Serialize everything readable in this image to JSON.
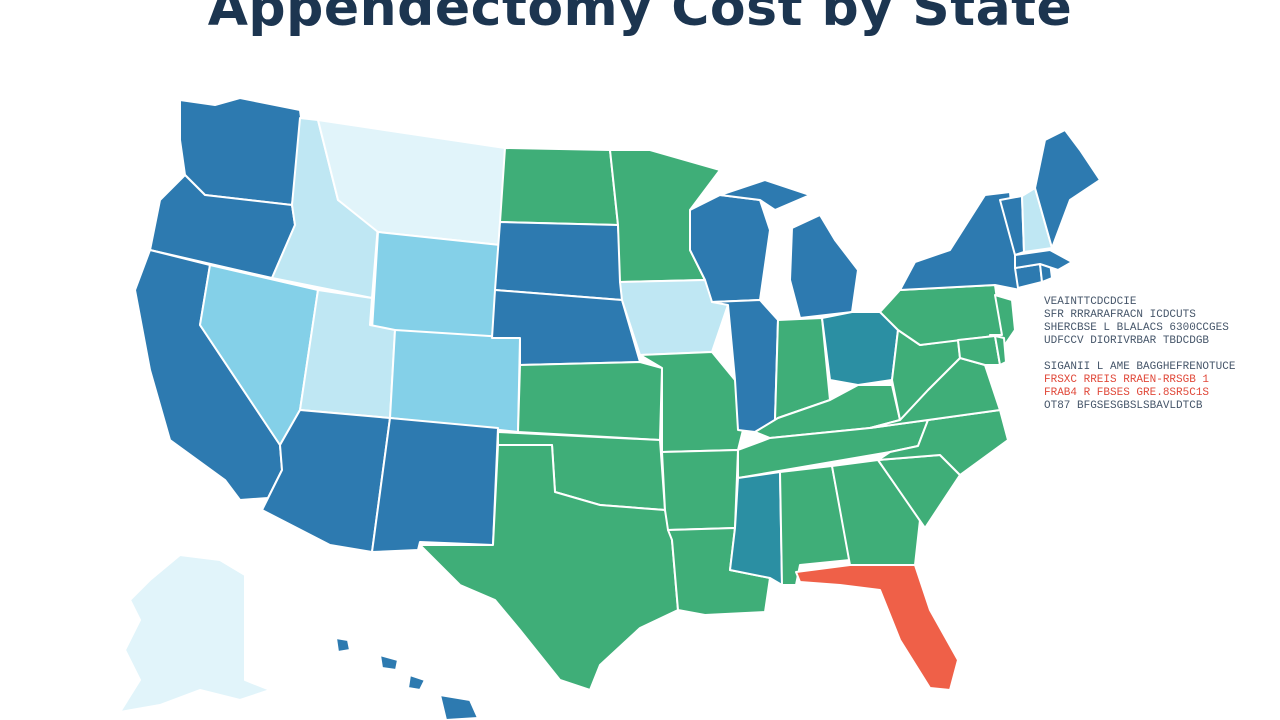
{
  "title": "Appendectomy Cost by State",
  "colors": {
    "dark_blue": "#2d7ab0",
    "teal": "#2b8fa3",
    "green": "#3fae78",
    "light_blue": "#84d0e8",
    "pale_blue": "#bfe7f3",
    "very_pale": "#e1f4fa",
    "red_orange": "#ef6048",
    "title_text": "#1c3550",
    "annotation_text": "#46566a",
    "annotation_red": "#e0493a"
  },
  "legend": "none",
  "annotations": {
    "lines": [
      {
        "text": "VEAINTTCDCDCIE",
        "color": "#46566a"
      },
      {
        "text": "SFR RRRARAFRACN ICDCUTS",
        "color": "#46566a"
      },
      {
        "text": "SHERCBSE L BLALACS 6300CCGES",
        "color": "#46566a"
      },
      {
        "text": "UDFCCV DIORIVRBAR TBDCDGB",
        "color": "#46566a"
      },
      {
        "text": "",
        "color": "#46566a"
      },
      {
        "text": "SIGANII L AME BAGGHEFRENOTUCE",
        "color": "#46566a"
      },
      {
        "text": "FRSXC RREIS RRAEN-RRSGB 1",
        "color": "#e0493a"
      },
      {
        "text": "FRAB4 R FBSES GRE.8SR5C1S",
        "color": "#e0493a"
      },
      {
        "text": "OT87 BFGSESGBSLSBAVLDTCB",
        "color": "#46566a"
      }
    ]
  },
  "states": [
    {
      "id": "WA",
      "fill": "#2d7ab0"
    },
    {
      "id": "OR",
      "fill": "#2d7ab0"
    },
    {
      "id": "CA",
      "fill": "#2d7ab0"
    },
    {
      "id": "ID",
      "fill": "#bfe7f3"
    },
    {
      "id": "NV",
      "fill": "#84d0e8"
    },
    {
      "id": "MT",
      "fill": "#e1f4fa"
    },
    {
      "id": "WY",
      "fill": "#84d0e8"
    },
    {
      "id": "UT",
      "fill": "#bfe7f3"
    },
    {
      "id": "CO",
      "fill": "#84d0e8"
    },
    {
      "id": "AZ",
      "fill": "#2d7ab0"
    },
    {
      "id": "NM",
      "fill": "#2d7ab0"
    },
    {
      "id": "ND",
      "fill": "#3fae78"
    },
    {
      "id": "SD",
      "fill": "#2d7ab0"
    },
    {
      "id": "NE",
      "fill": "#2d7ab0"
    },
    {
      "id": "KS",
      "fill": "#3fae78"
    },
    {
      "id": "OK",
      "fill": "#3fae78"
    },
    {
      "id": "TX",
      "fill": "#3fae78"
    },
    {
      "id": "MN",
      "fill": "#3fae78"
    },
    {
      "id": "IA",
      "fill": "#bfe7f3"
    },
    {
      "id": "MO",
      "fill": "#3fae78"
    },
    {
      "id": "AR",
      "fill": "#3fae78"
    },
    {
      "id": "LA",
      "fill": "#3fae78"
    },
    {
      "id": "WI",
      "fill": "#2d7ab0"
    },
    {
      "id": "IL",
      "fill": "#2d7ab0"
    },
    {
      "id": "MI",
      "fill": "#2d7ab0"
    },
    {
      "id": "IN",
      "fill": "#3fae78"
    },
    {
      "id": "OH",
      "fill": "#2b8fa3"
    },
    {
      "id": "KY",
      "fill": "#3fae78"
    },
    {
      "id": "TN",
      "fill": "#3fae78"
    },
    {
      "id": "MS",
      "fill": "#2b8fa3"
    },
    {
      "id": "AL",
      "fill": "#3fae78"
    },
    {
      "id": "GA",
      "fill": "#3fae78"
    },
    {
      "id": "FL",
      "fill": "#ef6048"
    },
    {
      "id": "SC",
      "fill": "#3fae78"
    },
    {
      "id": "NC",
      "fill": "#3fae78"
    },
    {
      "id": "VA",
      "fill": "#3fae78"
    },
    {
      "id": "WV",
      "fill": "#3fae78"
    },
    {
      "id": "PA",
      "fill": "#3fae78"
    },
    {
      "id": "NY",
      "fill": "#2d7ab0"
    },
    {
      "id": "NJ",
      "fill": "#3fae78"
    },
    {
      "id": "MD",
      "fill": "#3fae78"
    },
    {
      "id": "DE",
      "fill": "#3fae78"
    },
    {
      "id": "CT",
      "fill": "#2d7ab0"
    },
    {
      "id": "RI",
      "fill": "#2d7ab0"
    },
    {
      "id": "MA",
      "fill": "#2d7ab0"
    },
    {
      "id": "VT",
      "fill": "#2d7ab0"
    },
    {
      "id": "NH",
      "fill": "#bfe7f3"
    },
    {
      "id": "ME",
      "fill": "#2d7ab0"
    },
    {
      "id": "AK",
      "fill": "#e1f4fa"
    },
    {
      "id": "HI",
      "fill": "#2d7ab0"
    }
  ]
}
